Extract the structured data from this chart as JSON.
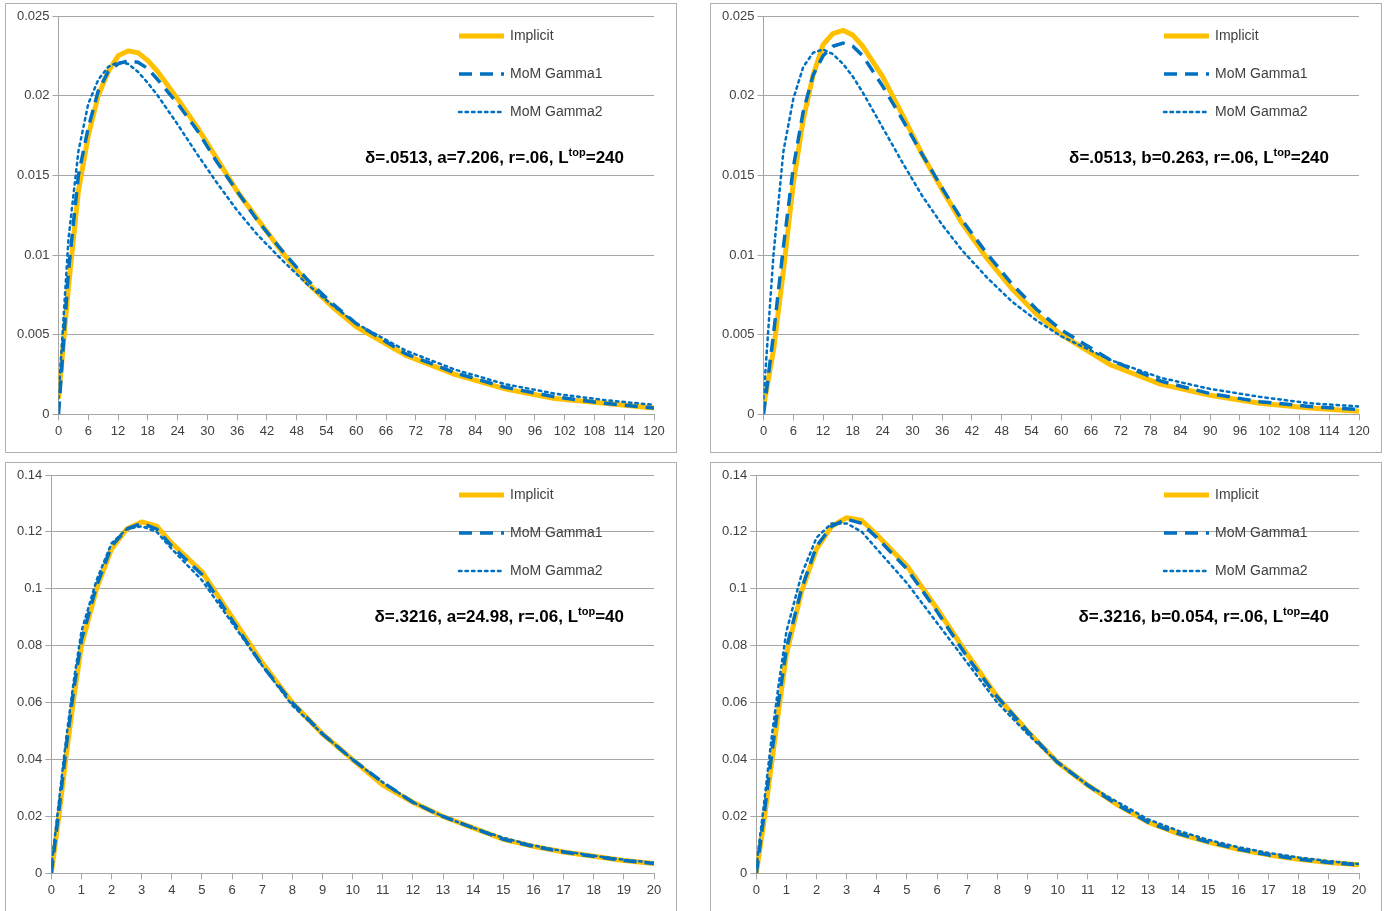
{
  "chart_data": [
    {
      "type": "line",
      "annotations": [
        "δ=.0513, a=7.206, r=.06, L$^{top}$=240"
      ],
      "legend": "top right",
      "grid": "y",
      "xlim": [
        0,
        120
      ],
      "xticks": [
        0,
        6,
        12,
        18,
        24,
        30,
        36,
        42,
        48,
        54,
        60,
        66,
        72,
        78,
        84,
        90,
        96,
        102,
        108,
        114,
        120
      ],
      "ylim": [
        0,
        0.025
      ],
      "yticks": [
        0,
        0.005,
        0.01,
        0.015,
        0.02,
        0.025
      ],
      "x": [
        0,
        2,
        4,
        6,
        8,
        10,
        12,
        14,
        16,
        18,
        20,
        24,
        28,
        32,
        36,
        40,
        45,
        50,
        55,
        60,
        70,
        80,
        90,
        100,
        110,
        120
      ],
      "series": [
        {
          "name": "Implicit",
          "color": "#ffc000",
          "line_style": "solid",
          "values": [
            0.001,
            0.008,
            0.014,
            0.0175,
            0.02,
            0.0215,
            0.0225,
            0.0228,
            0.0227,
            0.0222,
            0.0215,
            0.0198,
            0.018,
            0.016,
            0.014,
            0.0123,
            0.0102,
            0.0083,
            0.0068,
            0.0055,
            0.0037,
            0.0025,
            0.0016,
            0.001,
            0.0007,
            0.0004
          ]
        },
        {
          "name": "MoM Gamma1",
          "color": "#0070c0",
          "line_style": "dashed",
          "values": [
            0,
            0.009,
            0.015,
            0.018,
            0.0203,
            0.0215,
            0.022,
            0.0222,
            0.0221,
            0.0217,
            0.021,
            0.0195,
            0.0178,
            0.0158,
            0.014,
            0.0122,
            0.0103,
            0.0085,
            0.007,
            0.0057,
            0.0038,
            0.0026,
            0.0017,
            0.0011,
            0.0007,
            0.0004
          ]
        },
        {
          "name": "MoM Gamma2",
          "color": "#0070c0",
          "line_style": "dotted",
          "values": [
            0.001,
            0.011,
            0.0165,
            0.0195,
            0.021,
            0.0218,
            0.0221,
            0.022,
            0.0215,
            0.0208,
            0.02,
            0.0182,
            0.0163,
            0.0145,
            0.0128,
            0.0113,
            0.0097,
            0.0082,
            0.0069,
            0.0057,
            0.004,
            0.0028,
            0.0019,
            0.0013,
            0.0009,
            0.0006
          ]
        }
      ]
    },
    {
      "type": "line",
      "annotations": [
        "δ=.0513, b=0.263, r=.06, L$^{top}$=240"
      ],
      "legend": "top right",
      "grid": "y",
      "xlim": [
        0,
        120
      ],
      "xticks": [
        0,
        6,
        12,
        18,
        24,
        30,
        36,
        42,
        48,
        54,
        60,
        66,
        72,
        78,
        84,
        90,
        96,
        102,
        108,
        114,
        120
      ],
      "ylim": [
        0,
        0.025
      ],
      "yticks": [
        0,
        0.005,
        0.01,
        0.015,
        0.02,
        0.025
      ],
      "x": [
        0,
        2,
        4,
        6,
        8,
        10,
        12,
        14,
        16,
        18,
        20,
        24,
        28,
        32,
        36,
        40,
        45,
        50,
        55,
        60,
        70,
        80,
        90,
        100,
        110,
        120
      ],
      "series": [
        {
          "name": "Implicit",
          "color": "#ffc000",
          "line_style": "solid",
          "values": [
            0.0005,
            0.004,
            0.009,
            0.0145,
            0.0185,
            0.0213,
            0.0232,
            0.0239,
            0.0241,
            0.0238,
            0.0231,
            0.0212,
            0.0188,
            0.0163,
            0.0141,
            0.012,
            0.0098,
            0.0079,
            0.0063,
            0.005,
            0.0031,
            0.0019,
            0.0012,
            0.0007,
            0.0004,
            0.0002
          ]
        },
        {
          "name": "MoM Gamma1",
          "color": "#0070c0",
          "line_style": "dashed",
          "values": [
            0,
            0.005,
            0.0105,
            0.0155,
            0.019,
            0.0213,
            0.0225,
            0.0231,
            0.0233,
            0.0231,
            0.0225,
            0.0206,
            0.0185,
            0.0163,
            0.0142,
            0.0122,
            0.0101,
            0.0082,
            0.0066,
            0.0053,
            0.0034,
            0.0021,
            0.0013,
            0.0008,
            0.0005,
            0.0003
          ]
        },
        {
          "name": "MoM Gamma2",
          "color": "#0070c0",
          "line_style": "dotted",
          "values": [
            0.001,
            0.01,
            0.0165,
            0.0198,
            0.0218,
            0.0227,
            0.0229,
            0.0226,
            0.022,
            0.0212,
            0.0202,
            0.018,
            0.0158,
            0.0137,
            0.0119,
            0.0103,
            0.0086,
            0.0071,
            0.0059,
            0.0049,
            0.0034,
            0.0023,
            0.0016,
            0.0011,
            0.0007,
            0.0005
          ]
        }
      ]
    },
    {
      "type": "line",
      "annotations": [
        "δ=.3216, a=24.98, r=.06, L$^{top}$=40"
      ],
      "legend": "top right",
      "grid": "y",
      "xlim": [
        0,
        20
      ],
      "xticks": [
        0,
        1,
        2,
        3,
        4,
        5,
        6,
        7,
        8,
        9,
        10,
        11,
        12,
        13,
        14,
        15,
        16,
        17,
        18,
        19,
        20
      ],
      "ylim": [
        0,
        0.14
      ],
      "yticks": [
        0,
        0.02,
        0.04,
        0.06,
        0.08,
        0.1,
        0.12,
        0.14
      ],
      "x": [
        0,
        0.25,
        0.5,
        0.75,
        1,
        1.5,
        2,
        2.5,
        3,
        3.5,
        4,
        5,
        6,
        7,
        8,
        9,
        10,
        11,
        12,
        13,
        14,
        15,
        16,
        17,
        18,
        19,
        20
      ],
      "series": [
        {
          "name": "Implicit",
          "color": "#ffc000",
          "line_style": "solid",
          "values": [
            0,
            0.02,
            0.042,
            0.062,
            0.08,
            0.1,
            0.114,
            0.121,
            0.1235,
            0.122,
            0.116,
            0.106,
            0.09,
            0.074,
            0.06,
            0.049,
            0.04,
            0.031,
            0.025,
            0.02,
            0.016,
            0.012,
            0.0095,
            0.0075,
            0.006,
            0.0045,
            0.0035
          ]
        },
        {
          "name": "MoM Gamma1",
          "color": "#0070c0",
          "line_style": "dashed",
          "values": [
            0,
            0.022,
            0.045,
            0.065,
            0.082,
            0.101,
            0.115,
            0.121,
            0.123,
            0.121,
            0.115,
            0.105,
            0.089,
            0.073,
            0.06,
            0.049,
            0.04,
            0.032,
            0.025,
            0.02,
            0.016,
            0.012,
            0.0095,
            0.0075,
            0.006,
            0.0045,
            0.0035
          ]
        },
        {
          "name": "MoM Gamma2",
          "color": "#0070c0",
          "line_style": "dotted",
          "values": [
            0.002,
            0.025,
            0.048,
            0.068,
            0.085,
            0.103,
            0.116,
            0.121,
            0.122,
            0.12,
            0.114,
            0.103,
            0.088,
            0.073,
            0.059,
            0.049,
            0.04,
            0.032,
            0.025,
            0.02,
            0.016,
            0.0125,
            0.0098,
            0.0078,
            0.0062,
            0.0048,
            0.0037
          ]
        }
      ]
    },
    {
      "type": "line",
      "annotations": [
        "δ=.3216, b=0.054, r=.06, L$^{top}$=40"
      ],
      "legend": "top right",
      "grid": "y",
      "xlim": [
        0,
        20
      ],
      "xticks": [
        0,
        1,
        2,
        3,
        4,
        5,
        6,
        7,
        8,
        9,
        10,
        11,
        12,
        13,
        14,
        15,
        16,
        17,
        18,
        19,
        20
      ],
      "ylim": [
        0,
        0.14
      ],
      "yticks": [
        0,
        0.02,
        0.04,
        0.06,
        0.08,
        0.1,
        0.12,
        0.14
      ],
      "x": [
        0,
        0.25,
        0.5,
        0.75,
        1,
        1.5,
        2,
        2.5,
        3,
        3.5,
        4,
        5,
        6,
        7,
        8,
        9,
        10,
        11,
        12,
        13,
        14,
        15,
        16,
        17,
        18,
        19,
        20
      ],
      "series": [
        {
          "name": "Implicit",
          "color": "#ffc000",
          "line_style": "solid",
          "values": [
            0,
            0.018,
            0.038,
            0.058,
            0.077,
            0.099,
            0.114,
            0.122,
            0.125,
            0.124,
            0.119,
            0.108,
            0.093,
            0.077,
            0.062,
            0.05,
            0.039,
            0.031,
            0.024,
            0.018,
            0.014,
            0.011,
            0.0085,
            0.0065,
            0.005,
            0.0038,
            0.003
          ]
        },
        {
          "name": "MoM Gamma1",
          "color": "#0070c0",
          "line_style": "dashed",
          "values": [
            0,
            0.02,
            0.041,
            0.061,
            0.079,
            0.1,
            0.115,
            0.122,
            0.1245,
            0.123,
            0.118,
            0.107,
            0.092,
            0.076,
            0.062,
            0.05,
            0.039,
            0.031,
            0.024,
            0.018,
            0.014,
            0.011,
            0.0085,
            0.0065,
            0.005,
            0.0038,
            0.003
          ]
        },
        {
          "name": "MoM Gamma2",
          "color": "#0070c0",
          "line_style": "dotted",
          "values": [
            0.002,
            0.024,
            0.047,
            0.067,
            0.085,
            0.105,
            0.118,
            0.123,
            0.123,
            0.12,
            0.114,
            0.102,
            0.088,
            0.074,
            0.06,
            0.049,
            0.039,
            0.031,
            0.025,
            0.019,
            0.015,
            0.0118,
            0.0092,
            0.0072,
            0.0056,
            0.0043,
            0.0033
          ]
        }
      ]
    }
  ]
}
